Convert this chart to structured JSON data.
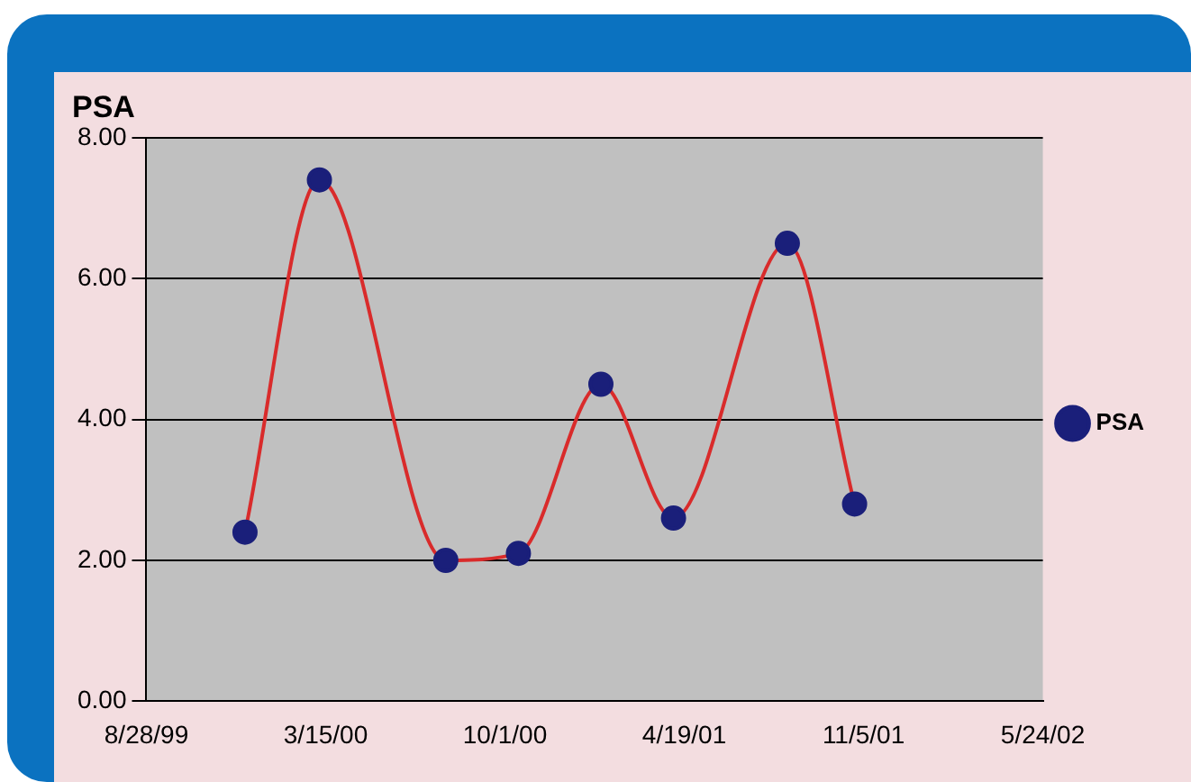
{
  "chart_data": {
    "type": "line",
    "title": "PSA",
    "x": [
      "1999-12-16",
      "2000-03-08",
      "2000-07-27",
      "2000-10-16",
      "2001-01-16",
      "2001-04-07",
      "2001-08-12",
      "2001-10-26"
    ],
    "series": [
      {
        "name": "PSA",
        "color": "#d92b2b",
        "values": [
          2.4,
          7.4,
          2.0,
          2.1,
          4.5,
          2.6,
          6.5,
          2.8
        ]
      }
    ],
    "xlim": [
      "1999-08-28",
      "2002-05-24"
    ],
    "xticks": [
      {
        "value": "1999-08-28",
        "label": "8/28/99"
      },
      {
        "value": "2000-03-15",
        "label": "3/15/00"
      },
      {
        "value": "2000-10-01",
        "label": "10/1/00"
      },
      {
        "value": "2001-04-19",
        "label": "4/19/01"
      },
      {
        "value": "2001-11-05",
        "label": "11/5/01"
      },
      {
        "value": "2002-05-24",
        "label": "5/24/02"
      }
    ],
    "ylim": [
      0,
      8
    ],
    "yticks": [
      {
        "value": 0,
        "label": "0.00"
      },
      {
        "value": 2,
        "label": "2.00"
      },
      {
        "value": 4,
        "label": "4.00"
      },
      {
        "value": 6,
        "label": "6.00"
      },
      {
        "value": 8,
        "label": "8.00"
      }
    ],
    "grid": "y",
    "legend": "right",
    "marker": "circle",
    "line_style": "solid"
  }
}
